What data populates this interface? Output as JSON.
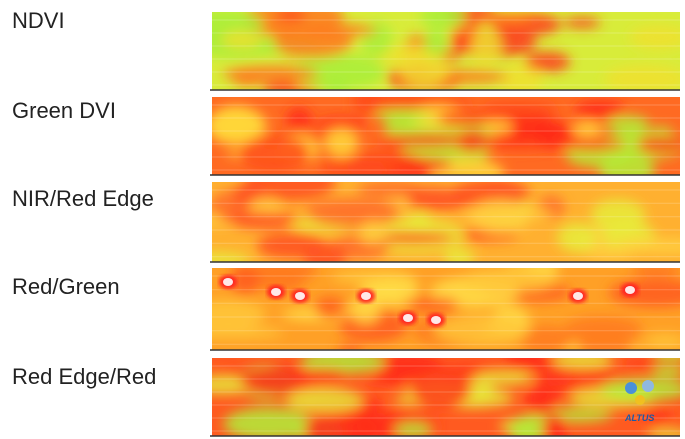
{
  "panels": [
    {
      "label": "NDVI"
    },
    {
      "label": "Green DVI"
    },
    {
      "label": "NIR/Red Edge"
    },
    {
      "label": "Red/Green"
    },
    {
      "label": "Red Edge/Red"
    }
  ],
  "logo": {
    "text": "ALTUS"
  }
}
